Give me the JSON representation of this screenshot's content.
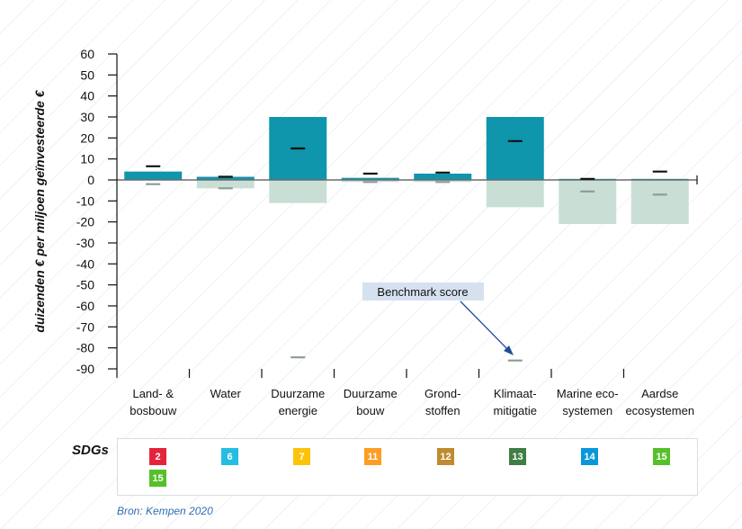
{
  "chart_data": {
    "type": "bar",
    "ylabel": "duizenden € per miljoen geïnvesteerde €",
    "ylim": [
      -90,
      60
    ],
    "yticks": [
      60,
      50,
      40,
      30,
      20,
      10,
      0,
      -10,
      -20,
      -30,
      -40,
      -50,
      -60,
      -70,
      -80,
      -90
    ],
    "categories": [
      {
        "line1": "Land- &",
        "line2": "bosbouw"
      },
      {
        "line1": "Water",
        "line2": ""
      },
      {
        "line1": "Duurzame",
        "line2": "energie"
      },
      {
        "line1": "Duurzame",
        "line2": "bouw"
      },
      {
        "line1": "Grond-",
        "line2": "stoffen"
      },
      {
        "line1": "Klimaat-",
        "line2": "mitigatie"
      },
      {
        "line1": "Marine eco-",
        "line2": "systemen"
      },
      {
        "line1": "Aardse",
        "line2": "ecosystemen"
      }
    ],
    "positive_values": [
      4,
      1.5,
      30,
      1,
      3,
      30,
      0.5,
      0.5
    ],
    "negative_values": [
      0,
      -4,
      -11,
      -1,
      -1,
      -13,
      -21,
      -21
    ],
    "positive_markers": [
      6.5,
      1.5,
      15,
      3,
      3.5,
      18.5,
      0.5,
      4
    ],
    "negative_markers": [
      -2,
      -4,
      -84.5,
      -1,
      -1,
      -86,
      -5.5,
      -7
    ],
    "annotation": "Benchmark score",
    "colors": {
      "positive": "#0f95ac",
      "negative": "#c9dfd6",
      "positive_marker": "#111111",
      "negative_marker": "#8c9a95",
      "axis": "#111111",
      "annotation_bg": "#d6e1f0",
      "annotation_arrow": "#1f4e9a"
    }
  },
  "sdgs": {
    "label": "SDGs",
    "badges": [
      {
        "text": "2",
        "color": "#e5243b"
      },
      {
        "text": "15",
        "color": "#56c02b"
      },
      {
        "text": "6",
        "color": "#26bde2"
      },
      {
        "text": "7",
        "color": "#fcc30b"
      },
      {
        "text": "11",
        "color": "#fd9d24"
      },
      {
        "text": "12",
        "color": "#bf8b2e"
      },
      {
        "text": "13",
        "color": "#3f7e44"
      },
      {
        "text": "14",
        "color": "#0a97d9"
      },
      {
        "text": "15",
        "color": "#56c02b"
      }
    ]
  },
  "source": "Bron: Kempen 2020"
}
